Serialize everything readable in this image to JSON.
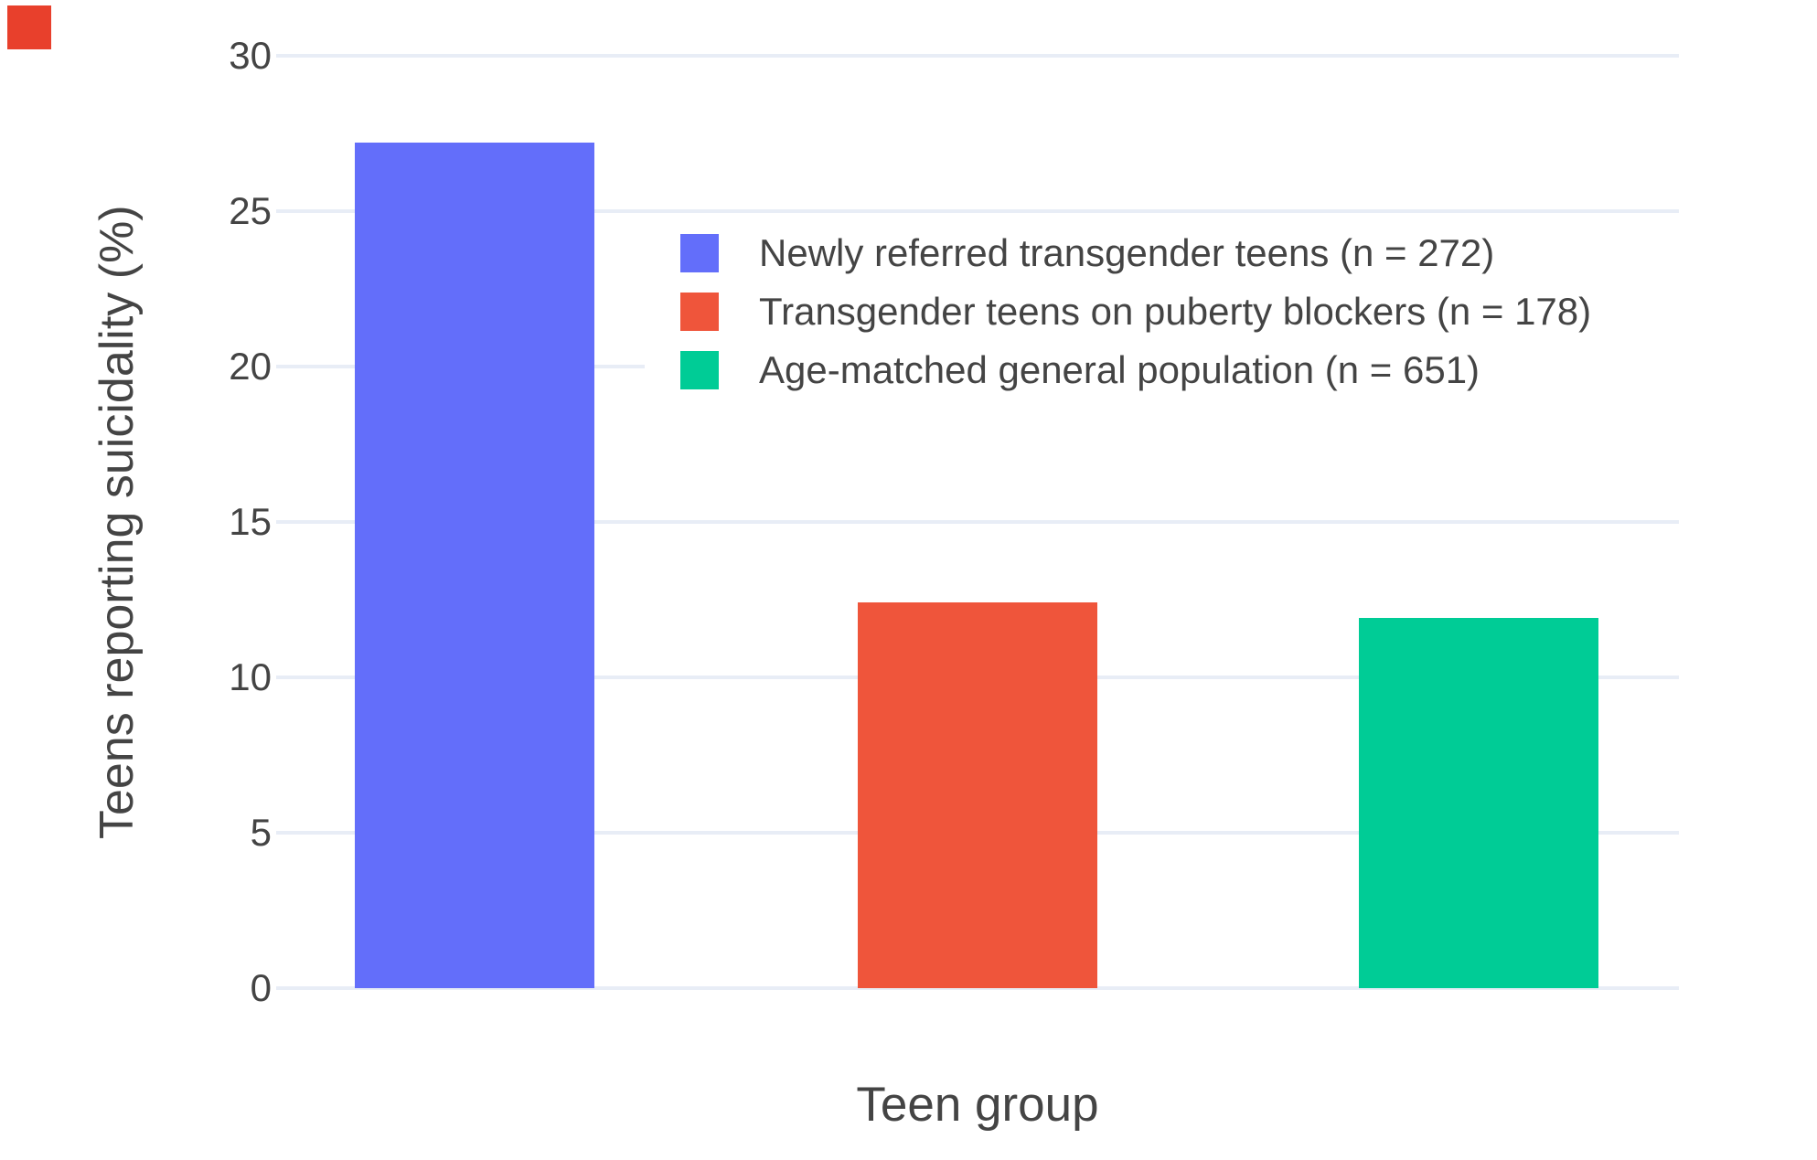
{
  "figure": {
    "background_color": "#ffffff",
    "text_color": "#444444",
    "grid_color": "#E8EDF6"
  },
  "overlay": {
    "cursor_marker_color": "#e8402c"
  },
  "chart_data": {
    "type": "bar",
    "title": "",
    "xlabel": "Teen group",
    "ylabel": "Teens reporting suicidality (%)",
    "ylim": [
      0,
      30
    ],
    "yticks": [
      0,
      5,
      10,
      15,
      20,
      25,
      30
    ],
    "grid": true,
    "legend_position": "inside upper-center-left",
    "categories": [
      "Newly referred transgender teens (n = 272)",
      "Transgender teens on puberty blockers (n = 178)",
      "Age-matched general population (n = 651)"
    ],
    "values": [
      27.2,
      12.4,
      11.9
    ],
    "colors": [
      "#636EFA",
      "#EF553B",
      "#00CC96"
    ],
    "series": [
      {
        "name": "Newly referred transgender teens (n = 272)",
        "value": 27.2,
        "color": "#636EFA"
      },
      {
        "name": "Transgender teens on puberty blockers (n = 178)",
        "value": 12.4,
        "color": "#EF553B"
      },
      {
        "name": "Age-matched general population (n = 651)",
        "value": 11.9,
        "color": "#00CC96"
      }
    ]
  }
}
